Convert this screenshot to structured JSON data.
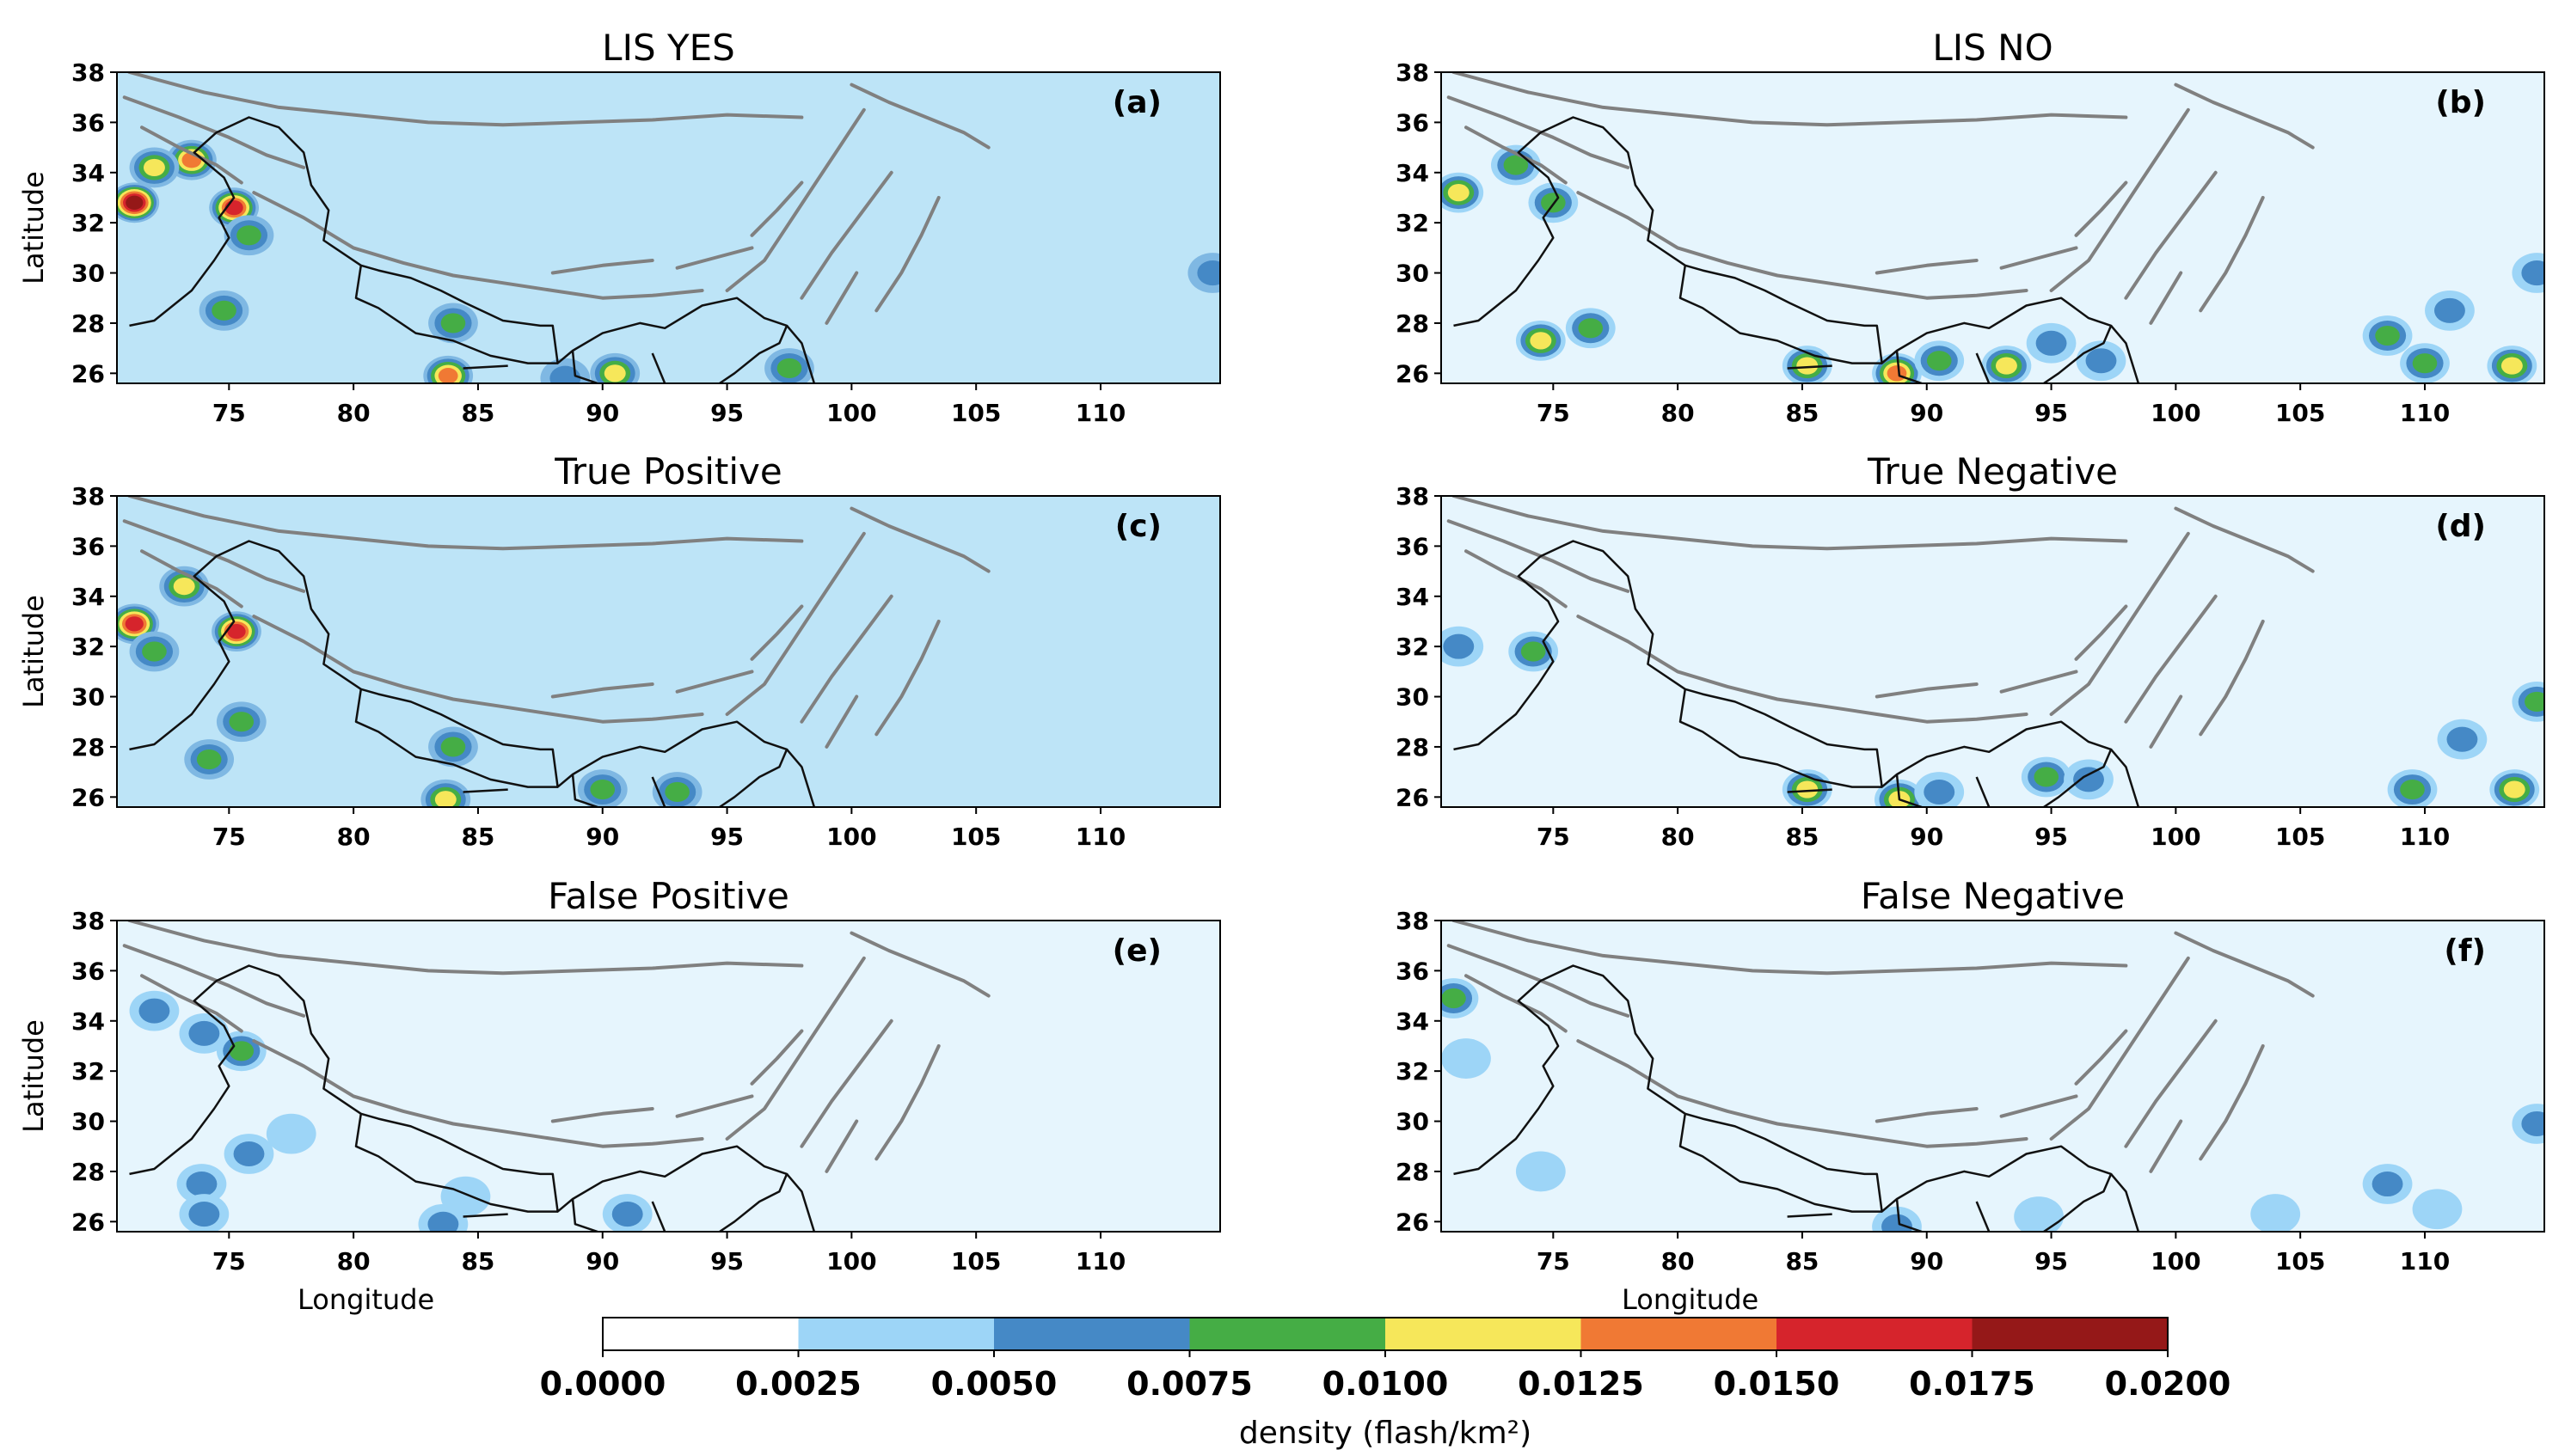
{
  "chart_data": {
    "type": "heatmap",
    "figure_kind": "filled-contour maps",
    "x_ticks": [
      75,
      80,
      85,
      90,
      95,
      100,
      105,
      110
    ],
    "y_ticks": [
      26,
      28,
      30,
      32,
      34,
      36,
      38
    ],
    "xlim": [
      70.5,
      114.8
    ],
    "ylim": [
      25.6,
      38.0
    ],
    "xlabel": "Longitude",
    "ylabel": "Latitude",
    "panels": [
      {
        "id": "a",
        "title": "LIS YES",
        "letter": "(a)",
        "background_level": 1,
        "show_xlabel": false,
        "show_ylabel": true,
        "hotspots": [
          [
            71.2,
            32.8,
            0.019
          ],
          [
            73.5,
            34.5,
            0.013
          ],
          [
            75.2,
            32.6,
            0.016
          ],
          [
            72.0,
            34.2,
            0.011
          ],
          [
            75.8,
            31.5,
            0.008
          ],
          [
            74.8,
            28.5,
            0.009
          ],
          [
            84.0,
            28.0,
            0.008
          ],
          [
            83.8,
            25.9,
            0.013
          ],
          [
            90.5,
            26.0,
            0.011
          ],
          [
            97.5,
            26.2,
            0.009
          ],
          [
            114.5,
            30.0,
            0.007
          ],
          [
            88.5,
            25.8,
            0.007
          ]
        ]
      },
      {
        "id": "b",
        "title": "LIS NO",
        "letter": "(b)",
        "background_level": 0,
        "show_xlabel": false,
        "show_ylabel": false,
        "hotspots": [
          [
            71.2,
            33.2,
            0.011
          ],
          [
            73.5,
            34.3,
            0.009
          ],
          [
            75.0,
            32.8,
            0.008
          ],
          [
            74.5,
            27.3,
            0.01
          ],
          [
            76.5,
            27.8,
            0.009
          ],
          [
            85.2,
            26.3,
            0.01
          ],
          [
            88.8,
            26.0,
            0.013
          ],
          [
            90.5,
            26.5,
            0.008
          ],
          [
            93.2,
            26.3,
            0.01
          ],
          [
            95.0,
            27.2,
            0.007
          ],
          [
            108.5,
            27.5,
            0.008
          ],
          [
            110.0,
            26.4,
            0.009
          ],
          [
            113.5,
            26.3,
            0.012
          ],
          [
            114.5,
            30.0,
            0.007
          ],
          [
            111.0,
            28.5,
            0.006
          ],
          [
            97.0,
            26.5,
            0.006
          ]
        ]
      },
      {
        "id": "c",
        "title": "True Positive",
        "letter": "(c)",
        "background_level": 1,
        "show_xlabel": false,
        "show_ylabel": true,
        "hotspots": [
          [
            71.2,
            32.9,
            0.017
          ],
          [
            73.2,
            34.4,
            0.012
          ],
          [
            75.3,
            32.6,
            0.015
          ],
          [
            75.5,
            29.0,
            0.009
          ],
          [
            74.2,
            27.5,
            0.008
          ],
          [
            84.0,
            28.0,
            0.008
          ],
          [
            83.7,
            25.9,
            0.012
          ],
          [
            90.0,
            26.3,
            0.008
          ],
          [
            93.0,
            26.2,
            0.008
          ],
          [
            72.0,
            31.8,
            0.008
          ]
        ]
      },
      {
        "id": "d",
        "title": "True Negative",
        "letter": "(d)",
        "background_level": 0,
        "show_xlabel": false,
        "show_ylabel": false,
        "hotspots": [
          [
            74.2,
            31.8,
            0.009
          ],
          [
            85.2,
            26.3,
            0.01
          ],
          [
            88.9,
            25.9,
            0.012
          ],
          [
            90.5,
            26.2,
            0.007
          ],
          [
            94.8,
            26.8,
            0.009
          ],
          [
            113.6,
            26.3,
            0.011
          ],
          [
            109.5,
            26.3,
            0.008
          ],
          [
            111.5,
            28.3,
            0.007
          ],
          [
            114.5,
            29.8,
            0.008
          ],
          [
            71.2,
            32.0,
            0.006
          ],
          [
            96.5,
            26.7,
            0.006
          ]
        ]
      },
      {
        "id": "e",
        "title": "False Positive",
        "letter": "(e)",
        "background_level": 0,
        "show_xlabel": true,
        "show_ylabel": true,
        "hotspots": [
          [
            72.0,
            34.4,
            0.006
          ],
          [
            74.0,
            33.5,
            0.006
          ],
          [
            75.5,
            32.8,
            0.008
          ],
          [
            73.9,
            27.5,
            0.006
          ],
          [
            74.0,
            26.3,
            0.006
          ],
          [
            75.8,
            28.7,
            0.005
          ],
          [
            83.6,
            25.9,
            0.006
          ],
          [
            91.0,
            26.3,
            0.006
          ],
          [
            84.5,
            27.0,
            0.004
          ],
          [
            77.5,
            29.5,
            0.004
          ]
        ]
      },
      {
        "id": "f",
        "title": "False Negative",
        "letter": "(f)",
        "background_level": 0,
        "show_xlabel": true,
        "show_ylabel": false,
        "hotspots": [
          [
            71.0,
            34.9,
            0.008
          ],
          [
            71.5,
            32.5,
            0.004
          ],
          [
            74.5,
            28.0,
            0.004
          ],
          [
            88.8,
            25.8,
            0.006
          ],
          [
            108.5,
            27.5,
            0.005
          ],
          [
            114.5,
            29.9,
            0.006
          ],
          [
            110.5,
            26.5,
            0.004
          ],
          [
            104.0,
            26.3,
            0.004
          ],
          [
            94.5,
            26.2,
            0.004
          ]
        ]
      }
    ],
    "colorbar": {
      "label": "density (flash/km²)",
      "tick_labels": [
        "0.0000",
        "0.0025",
        "0.0050",
        "0.0075",
        "0.0100",
        "0.0125",
        "0.0150",
        "0.0175",
        "0.0200"
      ],
      "bins": [
        {
          "from": 0.0,
          "to": 0.0025,
          "color": "#ffffff"
        },
        {
          "from": 0.0025,
          "to": 0.005,
          "color": "#9dd5f7"
        },
        {
          "from": 0.005,
          "to": 0.0075,
          "color": "#4589c6"
        },
        {
          "from": 0.0075,
          "to": 0.01,
          "color": "#45ad45"
        },
        {
          "from": 0.01,
          "to": 0.0125,
          "color": "#f6e75a"
        },
        {
          "from": 0.0125,
          "to": 0.015,
          "color": "#f07934"
        },
        {
          "from": 0.015,
          "to": 0.0175,
          "color": "#d6242c"
        },
        {
          "from": 0.0175,
          "to": 0.02,
          "color": "#951818"
        }
      ]
    },
    "background_colors": [
      "#e6f5fd",
      "#bde4f7"
    ],
    "terrain_color": "#808080",
    "boundary_color": "#111111"
  }
}
